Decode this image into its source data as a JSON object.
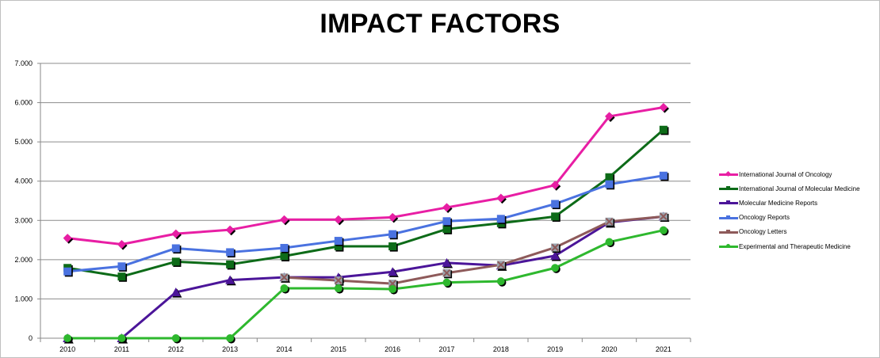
{
  "chart_data": {
    "type": "line",
    "title": "IMPACT FACTORS",
    "xlabel": "",
    "ylabel": "",
    "categories": [
      "2010",
      "2011",
      "2012",
      "2013",
      "2014",
      "2015",
      "2016",
      "2017",
      "2018",
      "2019",
      "2020",
      "2021"
    ],
    "ylim": [
      0,
      7
    ],
    "yticks": [
      "0",
      "1.000",
      "2.000",
      "3.000",
      "4.000",
      "5.000",
      "6.000",
      "7.000"
    ],
    "ytick_values": [
      0,
      1,
      2,
      3,
      4,
      5,
      6,
      7
    ],
    "grid": true,
    "legend_position": "right",
    "series": [
      {
        "name": "International Journal of Oncology",
        "color": "#e81ea4",
        "marker": "diamond",
        "values": [
          2.55,
          2.39,
          2.66,
          2.76,
          3.02,
          3.02,
          3.08,
          3.33,
          3.57,
          3.9,
          5.65,
          5.88
        ]
      },
      {
        "name": "International Journal of Molecular Medicine",
        "color": "#0d6b18",
        "marker": "square",
        "values": [
          1.79,
          1.57,
          1.95,
          1.88,
          2.09,
          2.34,
          2.34,
          2.78,
          2.93,
          3.1,
          4.1,
          5.31
        ]
      },
      {
        "name": "Molecular Medicine Reports",
        "color": "#4b1599",
        "marker": "triangle",
        "values": [
          0.0,
          0.0,
          1.17,
          1.48,
          1.55,
          1.55,
          1.69,
          1.92,
          1.85,
          2.1,
          2.95,
          3.1
        ]
      },
      {
        "name": "Oncology Reports",
        "color": "#4a72e0",
        "marker": "square",
        "values": [
          1.7,
          1.83,
          2.29,
          2.19,
          2.3,
          2.48,
          2.65,
          2.98,
          3.04,
          3.42,
          3.92,
          4.14
        ]
      },
      {
        "name": "Oncology Letters",
        "color": "#8e5a5a",
        "marker": "x",
        "values": [
          null,
          null,
          null,
          null,
          1.55,
          1.47,
          1.39,
          1.66,
          1.87,
          2.31,
          2.97,
          3.1
        ]
      },
      {
        "name": "Experimental and Therapeutic Medicine",
        "color": "#2eb82e",
        "marker": "circle",
        "values": [
          0.0,
          0.0,
          0.0,
          0.0,
          1.27,
          1.27,
          1.25,
          1.42,
          1.45,
          1.79,
          2.45,
          2.75
        ]
      }
    ]
  }
}
